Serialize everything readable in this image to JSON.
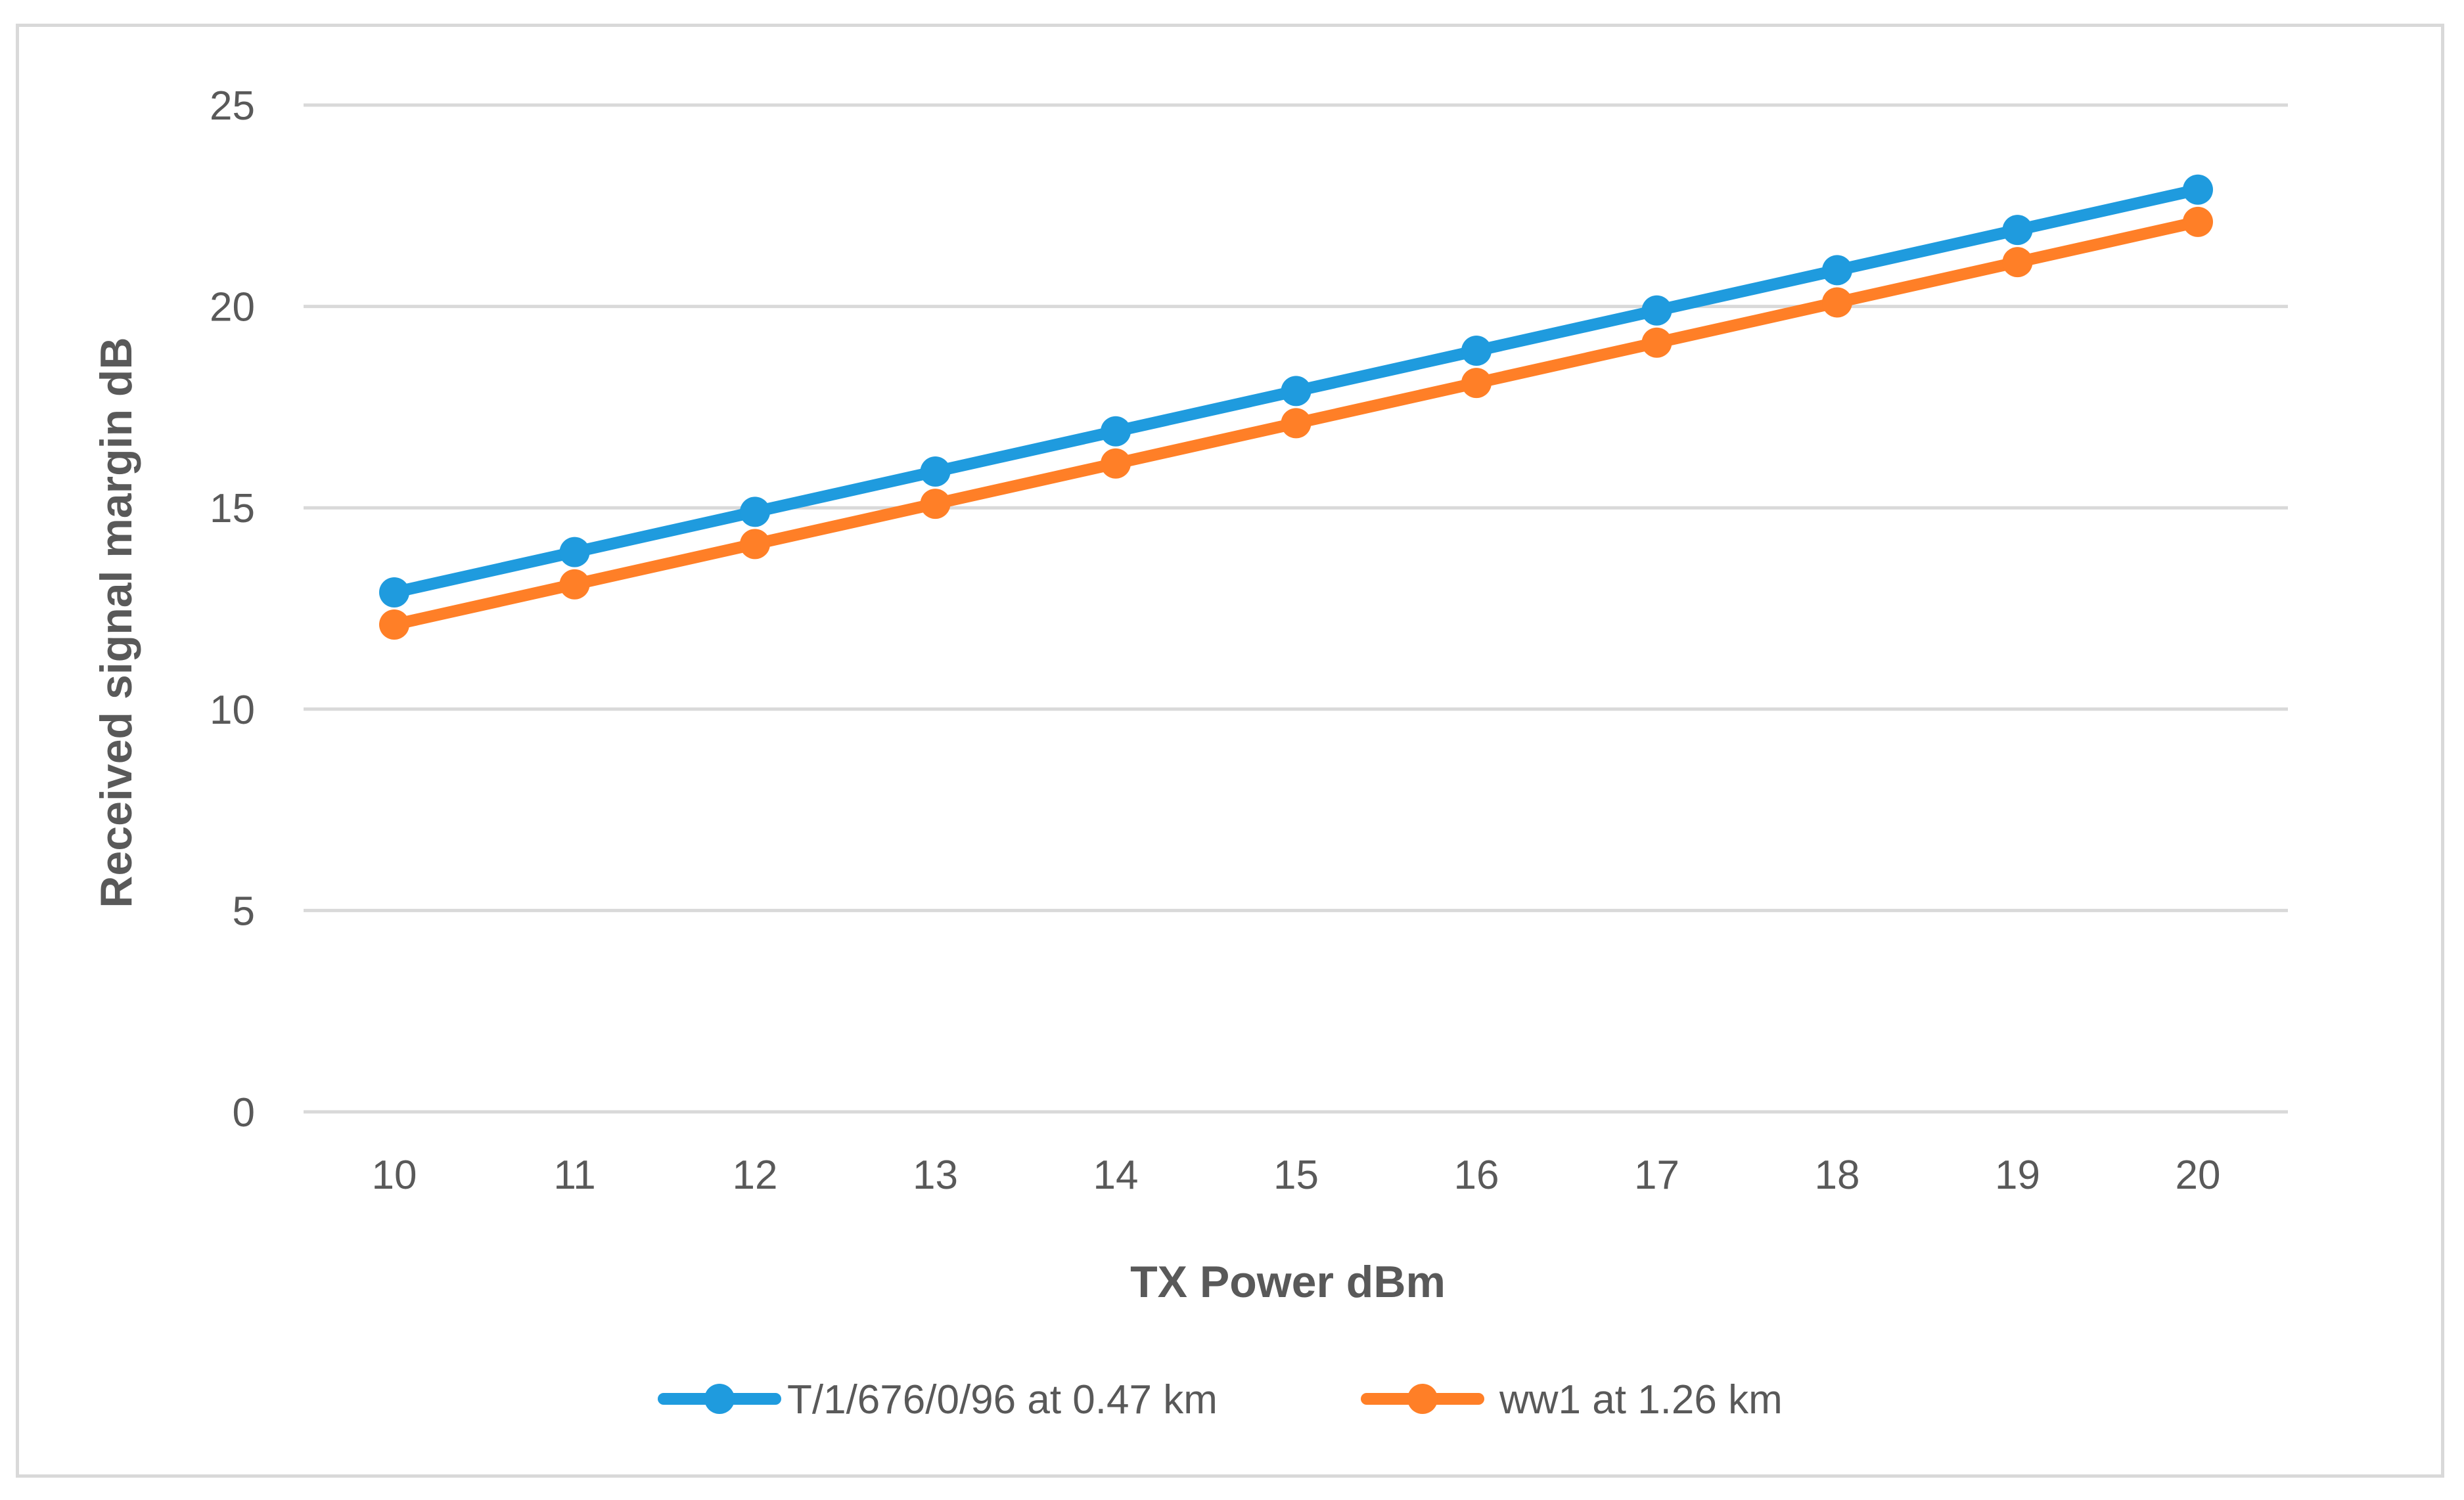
{
  "chart_data": {
    "type": "line",
    "title": "",
    "xlabel": "TX Power dBm",
    "ylabel": "Received signal margin dB",
    "categories": [
      "10",
      "11",
      "12",
      "13",
      "14",
      "15",
      "16",
      "17",
      "18",
      "19",
      "20"
    ],
    "x": [
      10,
      11,
      12,
      13,
      14,
      15,
      16,
      17,
      18,
      19,
      20
    ],
    "ylim": [
      0,
      25
    ],
    "yticks": [
      0,
      5,
      10,
      15,
      20,
      25
    ],
    "grid": "horizontal",
    "legend_position": "bottom",
    "series": [
      {
        "name": "T/1/676/0/96 at 0.47 km",
        "color": "#1f9bde",
        "values": [
          12.9,
          13.9,
          14.9,
          15.9,
          16.9,
          17.9,
          18.9,
          19.9,
          20.9,
          21.9,
          22.9
        ]
      },
      {
        "name": "ww1 at 1.26 km",
        "color": "#ff7f27",
        "values": [
          12.1,
          13.1,
          14.1,
          15.1,
          16.1,
          17.1,
          18.1,
          19.1,
          20.1,
          21.1,
          22.1
        ]
      }
    ]
  }
}
